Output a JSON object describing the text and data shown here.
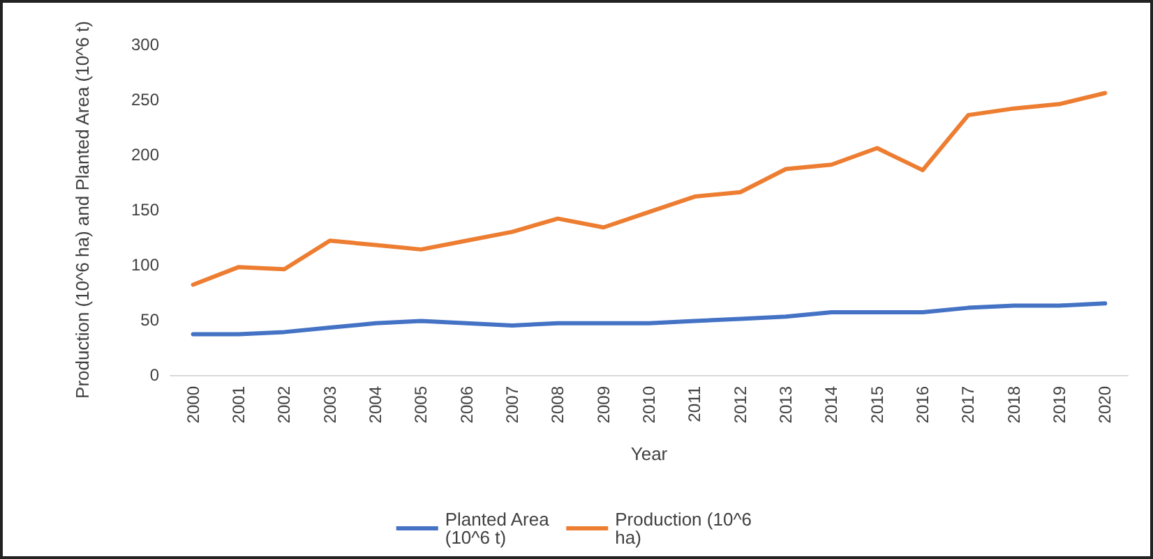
{
  "chart_data": {
    "type": "line",
    "xlabel": "Year",
    "ylabel": "Production (10^6 ha) and Planted Area (10^6 t)",
    "categories": [
      "2000",
      "2001",
      "2002",
      "2003",
      "2004",
      "2005",
      "2006",
      "2007",
      "2008",
      "2009",
      "2010",
      "2011",
      "2012",
      "2013",
      "2014",
      "2015",
      "2016",
      "2017",
      "2018",
      "2019",
      "2020"
    ],
    "series": [
      {
        "name": "Planted Area (10^6 t)",
        "color": "#4472c4",
        "values": [
          37,
          37,
          39,
          43,
          47,
          49,
          47,
          45,
          47,
          47,
          47,
          49,
          51,
          53,
          57,
          57,
          57,
          61,
          63,
          63,
          65
        ]
      },
      {
        "name": "Production (10^6 ha)",
        "color": "#ed7d31",
        "values": [
          82,
          98,
          96,
          122,
          118,
          114,
          122,
          130,
          142,
          134,
          148,
          162,
          166,
          187,
          191,
          206,
          186,
          236,
          242,
          246,
          256
        ]
      }
    ],
    "ylim": [
      0,
      300
    ],
    "yticks": [
      0,
      50,
      100,
      150,
      200,
      250,
      300
    ],
    "grid": false,
    "legend": "bottom",
    "marker": "none",
    "line_style": "solid"
  }
}
